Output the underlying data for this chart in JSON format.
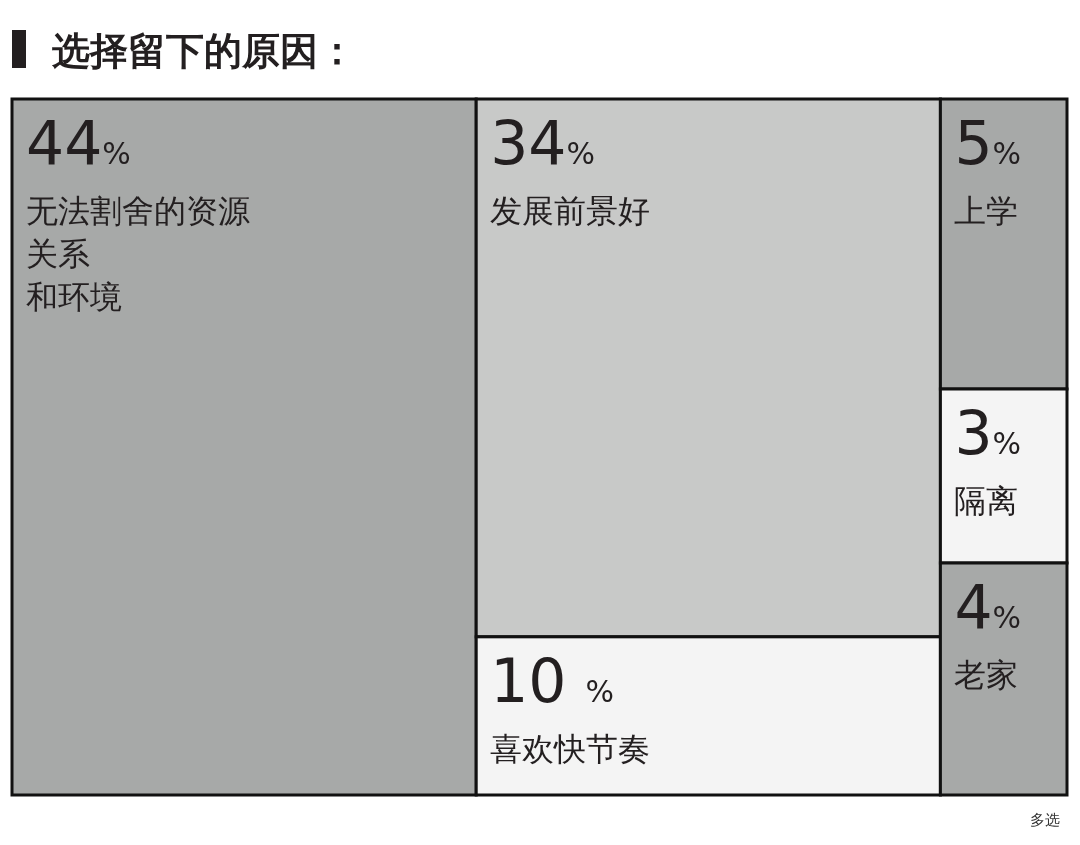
{
  "chart_data": {
    "type": "other",
    "title": "选择留下的原因：",
    "categories": [
      "无法割舍的资源关系和环境",
      "发展前景好",
      "喜欢快节奏",
      "上学",
      "隔离",
      "老家"
    ],
    "values": [
      44,
      34,
      10,
      5,
      3,
      4
    ],
    "value_labels": [
      "44%",
      "34%",
      "10 %",
      "5%",
      "3%",
      "4%"
    ],
    "colors": [
      "#a7a9a8",
      "#c8c9c8",
      "#f4f4f4",
      "#a7a9a8",
      "#f4f4f4",
      "#a7a9a8"
    ],
    "annotations": [
      "多选"
    ]
  }
}
